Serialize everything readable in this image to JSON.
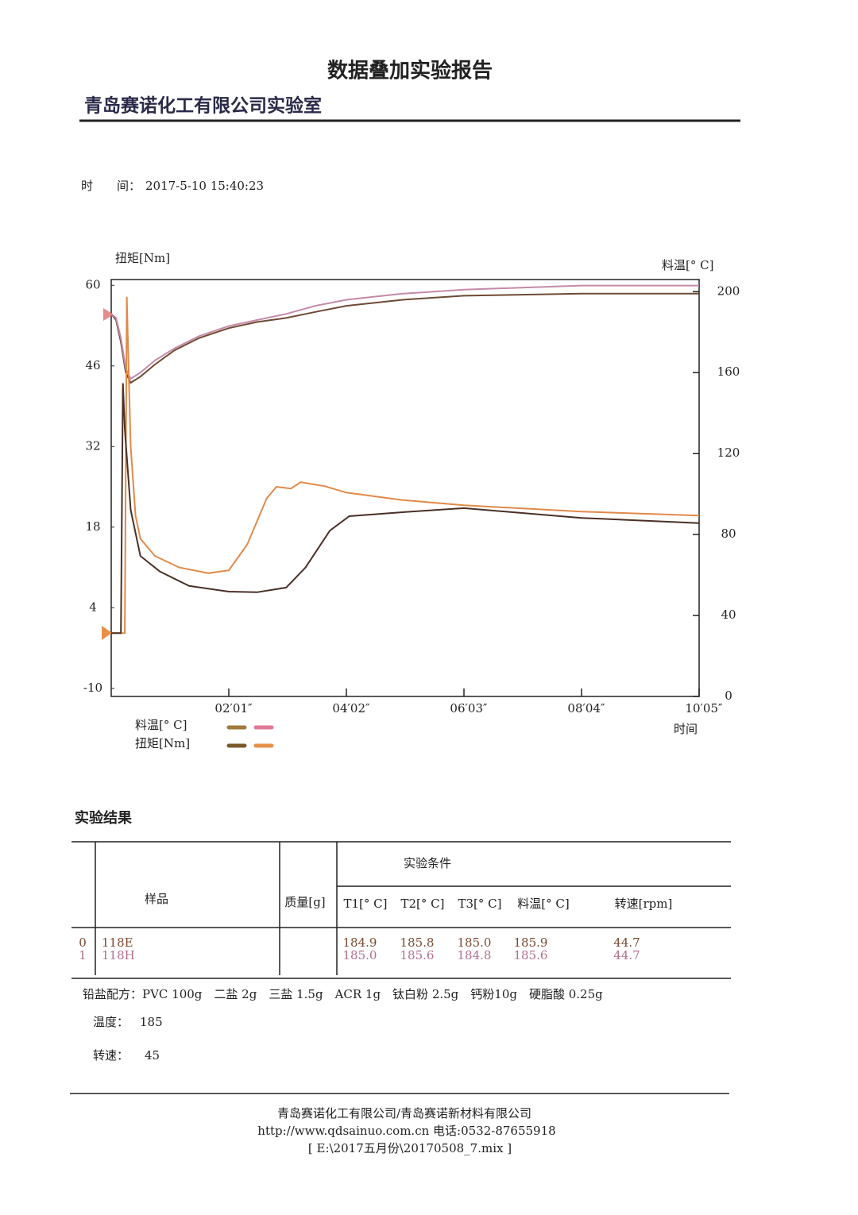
{
  "header": {
    "title": "数据叠加实验报告",
    "lab": "青岛赛诺化工有限公司实验室",
    "time_label": "时　　间：",
    "time": "2017-5-10 15:40:23"
  },
  "chart_data": {
    "type": "line",
    "y_label": "扭矩[Nm]",
    "y2_label": "料温[° C]",
    "x_label": "时间",
    "xlim": [
      0,
      605
    ],
    "xticks": [
      {
        "value": 121,
        "label": "02′01″"
      },
      {
        "value": 242,
        "label": "04′02″"
      },
      {
        "value": 363,
        "label": "06′03″"
      },
      {
        "value": 484,
        "label": "08′04″"
      },
      {
        "value": 605,
        "label": "10′05″"
      }
    ],
    "ylim": [
      -11.4,
      61
    ],
    "yticks": [
      -10,
      4,
      18,
      32,
      46,
      60
    ],
    "y2lim": [
      0,
      206
    ],
    "y2ticks": [
      0,
      40,
      80,
      120,
      160,
      200
    ],
    "series": [
      {
        "axis": "y2",
        "color": "#6e4a34",
        "x": [
          0,
          5,
          10,
          15,
          20,
          30,
          45,
          65,
          90,
          121,
          150,
          180,
          210,
          242,
          300,
          363,
          484,
          605
        ],
        "values": [
          189,
          186,
          175,
          160,
          155,
          158,
          164,
          171,
          177,
          182,
          185,
          187,
          190,
          193,
          196,
          198,
          199,
          199
        ]
      },
      {
        "axis": "y2",
        "color": "#c48aa8",
        "x": [
          0,
          5,
          10,
          15,
          20,
          30,
          45,
          65,
          90,
          121,
          150,
          180,
          210,
          242,
          300,
          363,
          484,
          605
        ],
        "values": [
          189,
          187,
          177,
          162,
          157,
          160,
          166,
          172,
          178,
          183,
          186,
          189,
          193,
          196,
          199,
          201,
          203,
          203
        ]
      },
      {
        "axis": "y",
        "color": "#e08a4a",
        "x": [
          0,
          14,
          16,
          18,
          20,
          25,
          30,
          45,
          70,
          100,
          121,
          140,
          160,
          170,
          185,
          195,
          220,
          242,
          300,
          363,
          484,
          605
        ],
        "values": [
          -0.4,
          -0.4,
          58,
          45,
          32,
          20,
          16,
          13,
          11,
          10,
          10.5,
          15,
          23,
          25,
          24.7,
          25.8,
          25.1,
          24,
          22.7,
          21.8,
          20.7,
          20
        ]
      },
      {
        "axis": "y",
        "color": "#4a3026",
        "x": [
          0,
          10,
          12,
          14,
          20,
          30,
          50,
          80,
          121,
          150,
          180,
          200,
          225,
          245,
          300,
          363,
          484,
          605
        ],
        "values": [
          -0.4,
          -0.4,
          43,
          35,
          21,
          13,
          10.3,
          7.8,
          6.8,
          6.7,
          7.5,
          11,
          17.4,
          19.9,
          20.6,
          21.3,
          19.6,
          18.7
        ]
      }
    ],
    "legend": [
      {
        "label": "料温[° C]",
        "colors": [
          "#a07a3a",
          "#e07898"
        ]
      },
      {
        "label": "扭矩[Nm]",
        "colors": [
          "#7a5a2a",
          "#e8904a"
        ]
      }
    ]
  },
  "results": {
    "title": "实验结果",
    "headers": {
      "sample": "样品",
      "mass": "质量[g]",
      "conditions": "实验条件",
      "columns": [
        "T1[° C]",
        "T2[° C]",
        "T3[° C]",
        "料温[° C]",
        "转速[rpm]"
      ]
    },
    "rows": [
      {
        "index": "0",
        "sample": "118E",
        "color": "#7a4a30",
        "values": [
          "184.9",
          "185.8",
          "185.0",
          "185.9",
          "44.7"
        ]
      },
      {
        "index": "1",
        "sample": "118H",
        "color": "#b0708a",
        "values": [
          "185.0",
          "185.6",
          "184.8",
          "185.6",
          "44.7"
        ]
      }
    ]
  },
  "notes": {
    "formula": "铅盐配方：PVC 100g　二盐 2g　三盐 1.5g　ACR 1g　钛白粉 2.5g　钙粉10g　硬脂酸 0.25g",
    "temp_label": "温度：",
    "temp": "185",
    "speed_label": "转速：",
    "speed": "45"
  },
  "footer": {
    "company": "青岛赛诺化工有限公司/青岛赛诺新材料有限公司",
    "contact": "http://www.qdsainuo.com.cn 电话:0532-87655918",
    "file": "[ E:\\2017五月份\\20170508_7.mix ]"
  }
}
